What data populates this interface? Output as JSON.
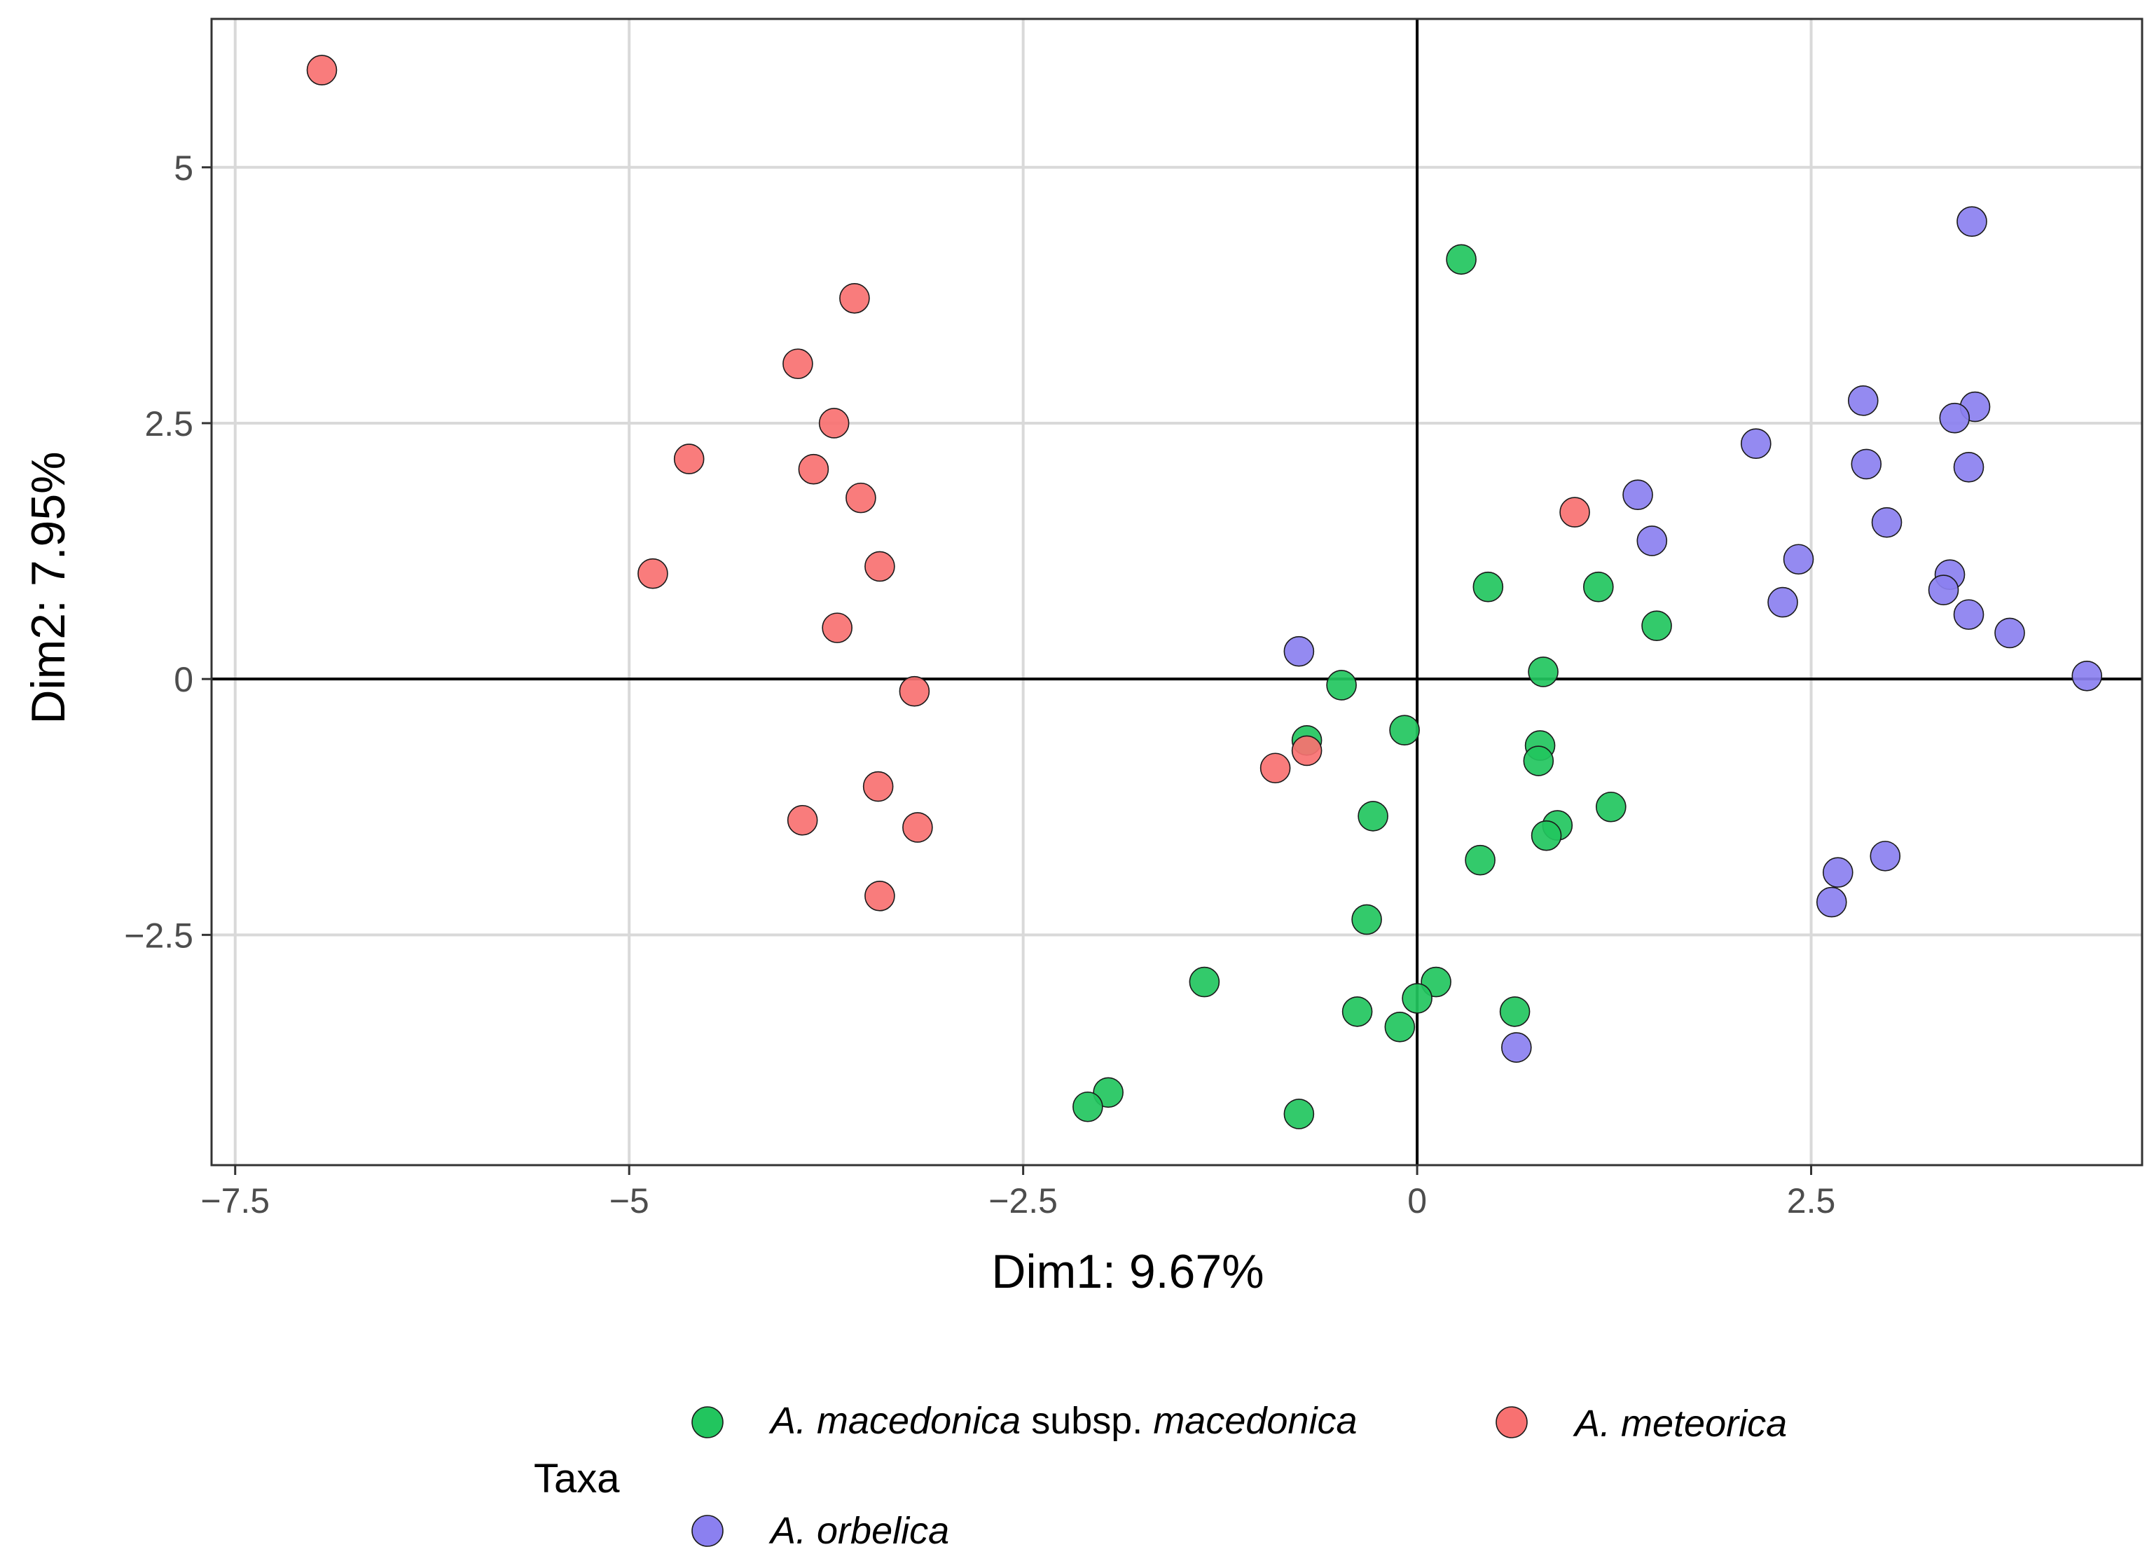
{
  "chart_data": {
    "type": "scatter",
    "title": "",
    "xlabel": "Dim1: 9.67%",
    "ylabel": "Dim2: 7.95%",
    "xlim": [
      -7.65,
      4.6
    ],
    "ylim": [
      -4.75,
      6.45
    ],
    "xticks": [
      -7.5,
      -5,
      -2.5,
      0,
      2.5
    ],
    "xtick_labels": [
      "−7.5",
      "−5",
      "−2.5",
      "0",
      "2.5"
    ],
    "yticks": [
      -2.5,
      0,
      2.5,
      5
    ],
    "ytick_labels": [
      "−2.5",
      "0",
      "2.5",
      "5"
    ],
    "grid": true,
    "reference_lines": {
      "x": 0,
      "y": 0
    },
    "legend": {
      "title": "Taxa",
      "position": "bottom",
      "entries": [
        {
          "series": 0,
          "parts": [
            {
              "text": "A. macedonica",
              "italic": true
            },
            {
              "text": " subsp. ",
              "italic": false
            },
            {
              "text": "macedonica",
              "italic": true
            }
          ]
        },
        {
          "series": 1,
          "parts": [
            {
              "text": "A. meteorica",
              "italic": true
            }
          ]
        },
        {
          "series": 2,
          "parts": [
            {
              "text": "A. orbelica",
              "italic": true
            }
          ]
        }
      ]
    },
    "series": [
      {
        "name": "A. macedonica subsp. macedonica",
        "color": "#22C55E",
        "points": [
          [
            0.28,
            4.1
          ],
          [
            0.45,
            0.9
          ],
          [
            1.15,
            0.9
          ],
          [
            1.52,
            0.52
          ],
          [
            0.8,
            0.07
          ],
          [
            -0.48,
            -0.06
          ],
          [
            -0.08,
            -0.5
          ],
          [
            -0.7,
            -0.6
          ],
          [
            0.78,
            -0.65
          ],
          [
            0.77,
            -0.8
          ],
          [
            1.23,
            -1.25
          ],
          [
            0.89,
            -1.43
          ],
          [
            0.82,
            -1.53
          ],
          [
            -0.28,
            -1.34
          ],
          [
            0.4,
            -1.77
          ],
          [
            -0.32,
            -2.35
          ],
          [
            -1.35,
            -2.96
          ],
          [
            0.12,
            -2.96
          ],
          [
            0.0,
            -3.12
          ],
          [
            -0.38,
            -3.25
          ],
          [
            -0.11,
            -3.4
          ],
          [
            0.62,
            -3.25
          ],
          [
            -1.96,
            -4.04
          ],
          [
            -2.09,
            -4.18
          ],
          [
            -0.75,
            -4.25
          ]
        ]
      },
      {
        "name": "A. meteorica",
        "color": "#F87171",
        "points": [
          [
            -6.95,
            5.95
          ],
          [
            -3.57,
            3.72
          ],
          [
            -3.93,
            3.08
          ],
          [
            -3.7,
            2.5
          ],
          [
            -4.62,
            2.15
          ],
          [
            -3.83,
            2.05
          ],
          [
            -3.53,
            1.77
          ],
          [
            -3.41,
            1.1
          ],
          [
            -4.85,
            1.03
          ],
          [
            -3.68,
            0.5
          ],
          [
            -3.19,
            -0.12
          ],
          [
            -0.9,
            -0.87
          ],
          [
            -0.7,
            -0.7
          ],
          [
            1.0,
            1.63
          ],
          [
            -3.42,
            -1.05
          ],
          [
            -3.9,
            -1.38
          ],
          [
            -3.17,
            -1.45
          ],
          [
            -3.41,
            -2.12
          ]
        ]
      },
      {
        "name": "A. orbelica",
        "color": "#8B80F0",
        "points": [
          [
            3.52,
            4.47
          ],
          [
            2.83,
            2.72
          ],
          [
            3.54,
            2.66
          ],
          [
            3.41,
            2.55
          ],
          [
            2.15,
            2.3
          ],
          [
            2.85,
            2.1
          ],
          [
            3.5,
            2.07
          ],
          [
            1.4,
            1.8
          ],
          [
            1.49,
            1.35
          ],
          [
            2.98,
            1.53
          ],
          [
            2.42,
            1.17
          ],
          [
            3.38,
            1.02
          ],
          [
            3.34,
            0.87
          ],
          [
            2.32,
            0.75
          ],
          [
            3.5,
            0.63
          ],
          [
            3.76,
            0.45
          ],
          [
            4.25,
            0.03
          ],
          [
            -0.75,
            0.27
          ],
          [
            2.67,
            -1.89
          ],
          [
            2.97,
            -1.73
          ],
          [
            2.63,
            -2.18
          ],
          [
            0.63,
            -3.6
          ]
        ]
      }
    ]
  }
}
